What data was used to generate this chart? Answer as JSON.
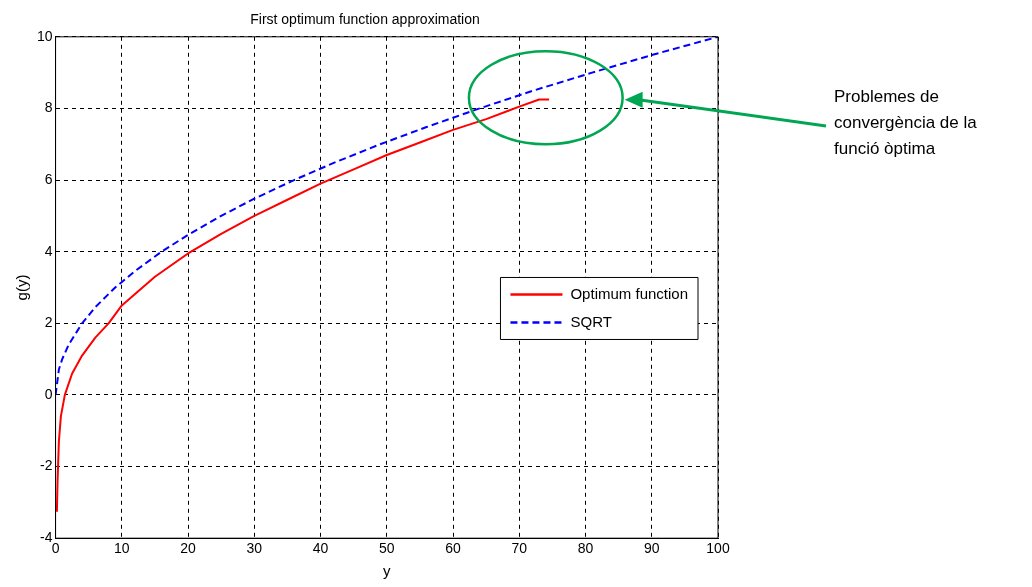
{
  "chart_data": {
    "type": "line",
    "title": "First optimum function approximation",
    "xlabel": "y",
    "ylabel": "g(y)",
    "xlim": [
      0,
      100
    ],
    "xticks": [
      0,
      10,
      20,
      30,
      40,
      50,
      60,
      70,
      80,
      90,
      100
    ],
    "ylim": [
      -4,
      10
    ],
    "yticks": [
      -4,
      -2,
      0,
      2,
      4,
      6,
      8,
      10
    ],
    "grid": true,
    "legend": "right",
    "marker": "none",
    "series": [
      {
        "name": "Optimum function",
        "color": "#ff0000",
        "line_style": "solid",
        "x": [
          0.2,
          0.3,
          0.5,
          0.8,
          1.4,
          2.5,
          4,
          6,
          8,
          10,
          15,
          20,
          25,
          30,
          35,
          40,
          45,
          50,
          55,
          60,
          65,
          70,
          73,
          74.5
        ],
        "values": [
          -3.26,
          -2.4,
          -1.3,
          -0.6,
          0,
          0.6,
          1.1,
          1.6,
          2.0,
          2.5,
          3.3,
          3.95,
          4.5,
          5.0,
          5.45,
          5.9,
          6.3,
          6.7,
          7.05,
          7.4,
          7.7,
          8.05,
          8.25,
          8.25
        ]
      },
      {
        "name": "SQRT",
        "color": "#0000ff",
        "line_style": "dashed",
        "x": [
          0,
          0.5,
          1,
          2,
          4,
          6,
          9,
          12,
          16,
          20,
          25,
          30,
          36,
          42,
          49,
          56,
          64,
          72,
          81,
          90,
          100
        ],
        "values": [
          0,
          0.71,
          1,
          1.41,
          2,
          2.45,
          3,
          3.46,
          4,
          4.47,
          5,
          5.48,
          6,
          6.48,
          7,
          7.48,
          8,
          8.49,
          9,
          9.49,
          10
        ]
      }
    ],
    "annotations": [
      "Problemes de convergència de la funció òptima"
    ]
  }
}
